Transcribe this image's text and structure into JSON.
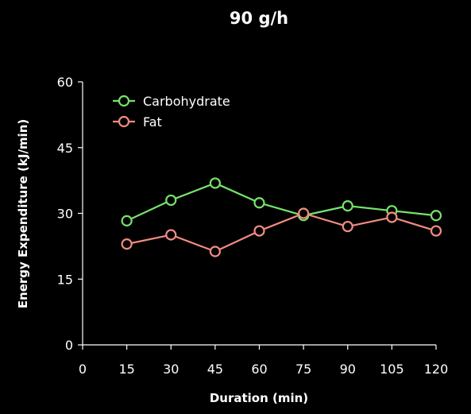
{
  "chart_data": {
    "type": "line",
    "title": "90 g/h",
    "xlabel": "Duration (min)",
    "ylabel": "Energy Expenditure (kJ/min)",
    "x": [
      15,
      30,
      45,
      60,
      75,
      90,
      105,
      120
    ],
    "x_ticks": [
      "0",
      "15",
      "30",
      "45",
      "60",
      "75",
      "90",
      "105",
      "120"
    ],
    "y_ticks": [
      "0",
      "15",
      "30",
      "45",
      "60"
    ],
    "xlim": [
      0,
      120
    ],
    "ylim": [
      0,
      60
    ],
    "grid": false,
    "legend_position": "top-left",
    "series": [
      {
        "name": "Carbohydrate",
        "color": "#77e26a",
        "values": [
          28.3,
          33.0,
          36.9,
          32.4,
          29.5,
          31.7,
          30.6,
          29.5
        ]
      },
      {
        "name": "Fat",
        "color": "#f28b82",
        "values": [
          23.0,
          25.1,
          21.3,
          26.0,
          30.0,
          27.0,
          29.1,
          26.0
        ]
      }
    ]
  }
}
